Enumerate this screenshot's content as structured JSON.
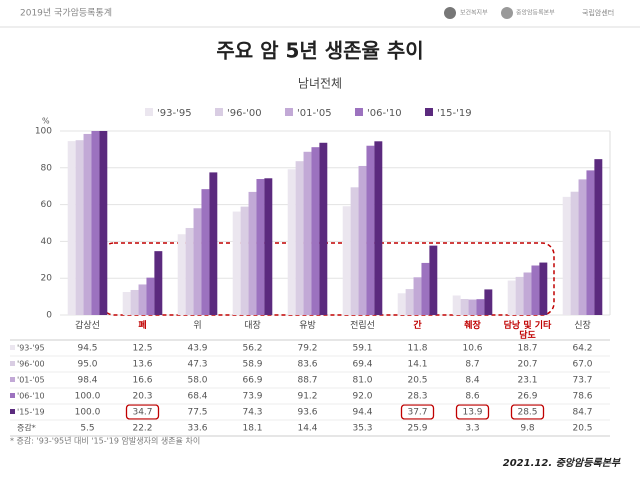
{
  "header": {
    "left": "2019년 국가암등록통계",
    "logos": [
      "보건복지부",
      "중앙암등록본부",
      "국립암센터"
    ]
  },
  "chart_data": {
    "type": "bar",
    "title": "주요 암 5년 생존율 추이",
    "subtitle": "남녀전체",
    "y_unit": "%",
    "categories": [
      "갑상선",
      "폐",
      "위",
      "대장",
      "유방",
      "전립선",
      "간",
      "췌장",
      "담낭 및 기타담도",
      "신장"
    ],
    "category_colors": [
      "#444444",
      "#c00000",
      "#444444",
      "#444444",
      "#444444",
      "#444444",
      "#c00000",
      "#c00000",
      "#c00000",
      "#444444"
    ],
    "series": [
      {
        "name": "'93-'95",
        "color": "#ebe6ef",
        "values": [
          94.5,
          12.5,
          43.9,
          56.2,
          79.2,
          59.1,
          11.8,
          10.6,
          18.7,
          64.2
        ],
        "value_labels": [
          "94.5",
          "12.5",
          "43.9",
          "56.2",
          "79.2",
          "59.1",
          "11.8",
          "10.6",
          "18.7",
          "64.2"
        ]
      },
      {
        "name": "'96-'00",
        "color": "#d9cde3",
        "values": [
          95.0,
          13.6,
          47.3,
          58.9,
          83.6,
          69.4,
          14.1,
          8.7,
          20.7,
          67.0
        ],
        "value_labels": [
          "95.0",
          "13.6",
          "47.3",
          "58.9",
          "83.6",
          "69.4",
          "14.1",
          "8.7",
          "20.7",
          "67.0"
        ]
      },
      {
        "name": "'01-'05",
        "color": "#c2a9d6",
        "values": [
          98.4,
          16.6,
          58.0,
          66.9,
          88.7,
          81.0,
          20.5,
          8.4,
          23.1,
          73.7
        ],
        "value_labels": [
          "98.4",
          "16.6",
          "58.0",
          "66.9",
          "88.7",
          "81.0",
          "20.5",
          "8.4",
          "23.1",
          "73.7"
        ]
      },
      {
        "name": "'06-'10",
        "color": "#9c72bf",
        "values": [
          100.0,
          20.3,
          68.4,
          73.9,
          91.2,
          92.0,
          28.3,
          8.6,
          26.9,
          78.6
        ],
        "value_labels": [
          "100.0",
          "20.3",
          "68.4",
          "73.9",
          "91.2",
          "92.0",
          "28.3",
          "8.6",
          "26.9",
          "78.6"
        ]
      },
      {
        "name": "'15-'19",
        "color": "#5b2a7e",
        "values": [
          100.0,
          34.7,
          77.5,
          74.3,
          93.6,
          94.4,
          37.7,
          13.9,
          28.5,
          84.7
        ],
        "value_labels": [
          "100.0",
          "34.7",
          "77.5",
          "74.3",
          "93.6",
          "94.4",
          "37.7",
          "13.9",
          "28.5",
          "84.7"
        ]
      }
    ],
    "change": {
      "label": "증감*",
      "values": [
        5.5,
        22.2,
        33.6,
        18.1,
        14.4,
        35.3,
        25.9,
        3.3,
        9.8,
        20.5
      ]
    },
    "ylim": [
      0,
      100
    ],
    "yticks": [
      0,
      20,
      40,
      60,
      80,
      100
    ],
    "grid": true
  },
  "footnote": "* 증감: '93-'95년 대비 '15-'19 암발생자의 생존율 차이",
  "source": "2021.12. 중앙암등록본부"
}
